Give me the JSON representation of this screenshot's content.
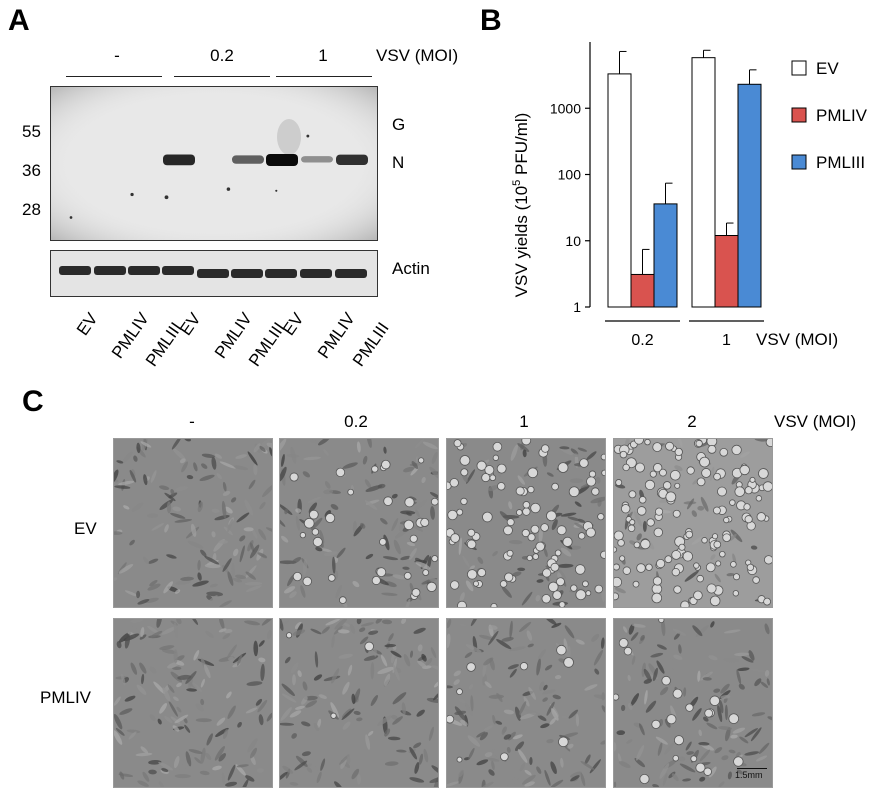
{
  "panel_a": {
    "letter": "A",
    "moi_header": "VSV (MOI)",
    "moi_groups": [
      "-",
      "0.2",
      "1"
    ],
    "mw_markers": [
      "55",
      "36",
      "28"
    ],
    "band_labels": [
      "G",
      "N"
    ],
    "actin_label": "Actin",
    "lane_labels": [
      "EV",
      "PMLIV",
      "PMLIII",
      "EV",
      "PMLIV",
      "PMLIII",
      "EV",
      "PMLIV",
      "PMLIII"
    ],
    "n_band_intensity": [
      0,
      0,
      0,
      0.85,
      0,
      0.55,
      1.0,
      0.3,
      0.8
    ]
  },
  "panel_b": {
    "letter": "B",
    "xlabel": "VSV (MOI)",
    "ylabel_main": "VSV yields (10",
    "ylabel_sup": "5",
    "ylabel_tail": " PFU/ml)",
    "legend": [
      {
        "name": "EV",
        "color": "#ffffff"
      },
      {
        "name": "PMLIV",
        "color": "#d9534f"
      },
      {
        "name": "PMLIII",
        "color": "#4a8ad4"
      }
    ]
  },
  "chart_data": {
    "type": "bar",
    "categories": [
      "0.2",
      "1"
    ],
    "series": [
      {
        "name": "EV",
        "values": [
          3300,
          5800
        ],
        "errors": [
          3900,
          1700
        ],
        "color": "#ffffff"
      },
      {
        "name": "PMLIV",
        "values": [
          3.1,
          12
        ],
        "errors": [
          4.3,
          6.5
        ],
        "color": "#d9534f"
      },
      {
        "name": "PMLIII",
        "values": [
          36,
          2300
        ],
        "errors": [
          38,
          1500
        ],
        "color": "#4a8ad4"
      }
    ],
    "ylim": [
      1,
      10000
    ],
    "yscale": "log",
    "yticks": [
      "1",
      "10",
      "100",
      "1000"
    ],
    "xlabel": "VSV (MOI)",
    "ylabel": "VSV yields (10^5 PFU/ml)",
    "legend_position": "right"
  },
  "panel_c": {
    "letter": "C",
    "moi_header": "VSV (MOI)",
    "columns": [
      "-",
      "0.2",
      "1",
      "2"
    ],
    "rows": [
      "EV",
      "PMLIV"
    ],
    "rounded_cell_level": [
      [
        0.0,
        0.2,
        0.55,
        0.85
      ],
      [
        0.0,
        0.02,
        0.05,
        0.12
      ]
    ],
    "scale_bar": "1.5mm"
  },
  "colors": {
    "pmliv": "#d9534f",
    "pmliii": "#4a8ad4",
    "blot_bg": "#e6e6e6",
    "micro_bg": "#8e8e8e"
  }
}
